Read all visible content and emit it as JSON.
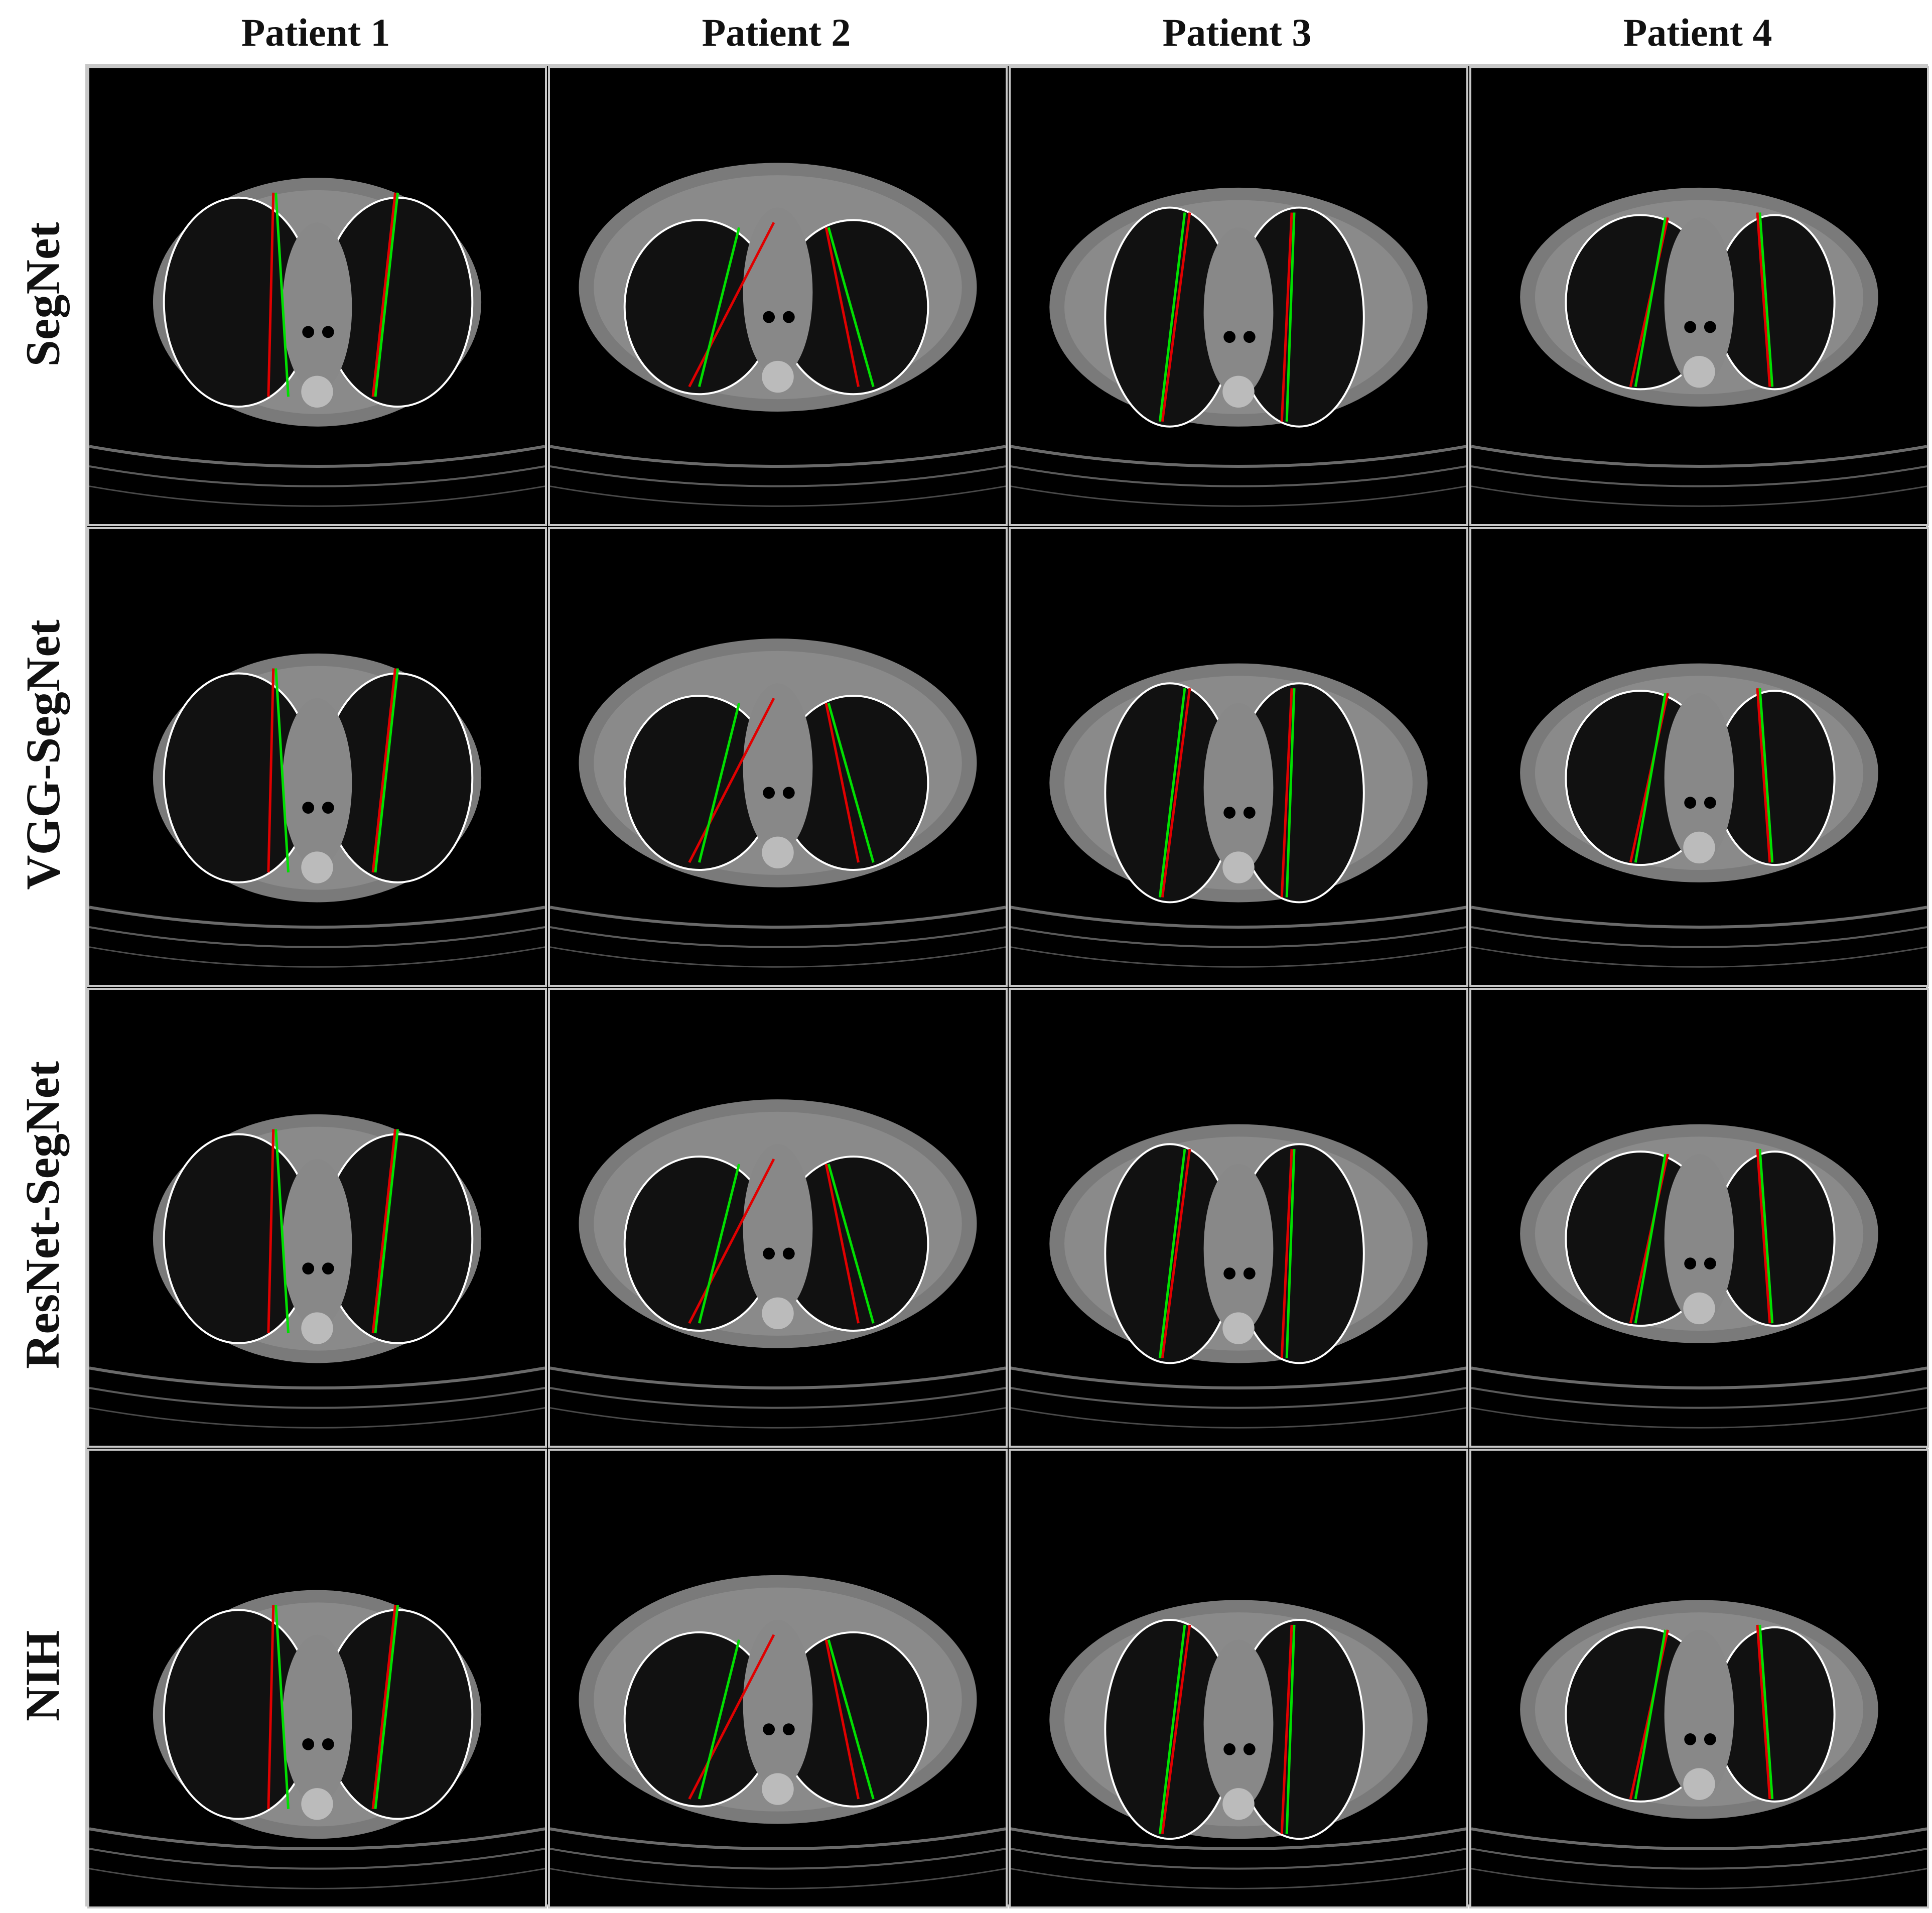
{
  "columns": [
    "Patient 1",
    "Patient 2",
    "Patient 3",
    "Patient 4"
  ],
  "rows": [
    "SegNet",
    "VGG-SegNet",
    "ResNet-SegNet",
    "NIH"
  ],
  "colors": {
    "ground_truth_line": "#00e000",
    "prediction_line": "#e00000",
    "lung_contour": "#ffffff",
    "background": "#000000"
  },
  "icons": [
    "ct-slice-image",
    "lung-contour",
    "green-reference-line",
    "red-predicted-line"
  ]
}
